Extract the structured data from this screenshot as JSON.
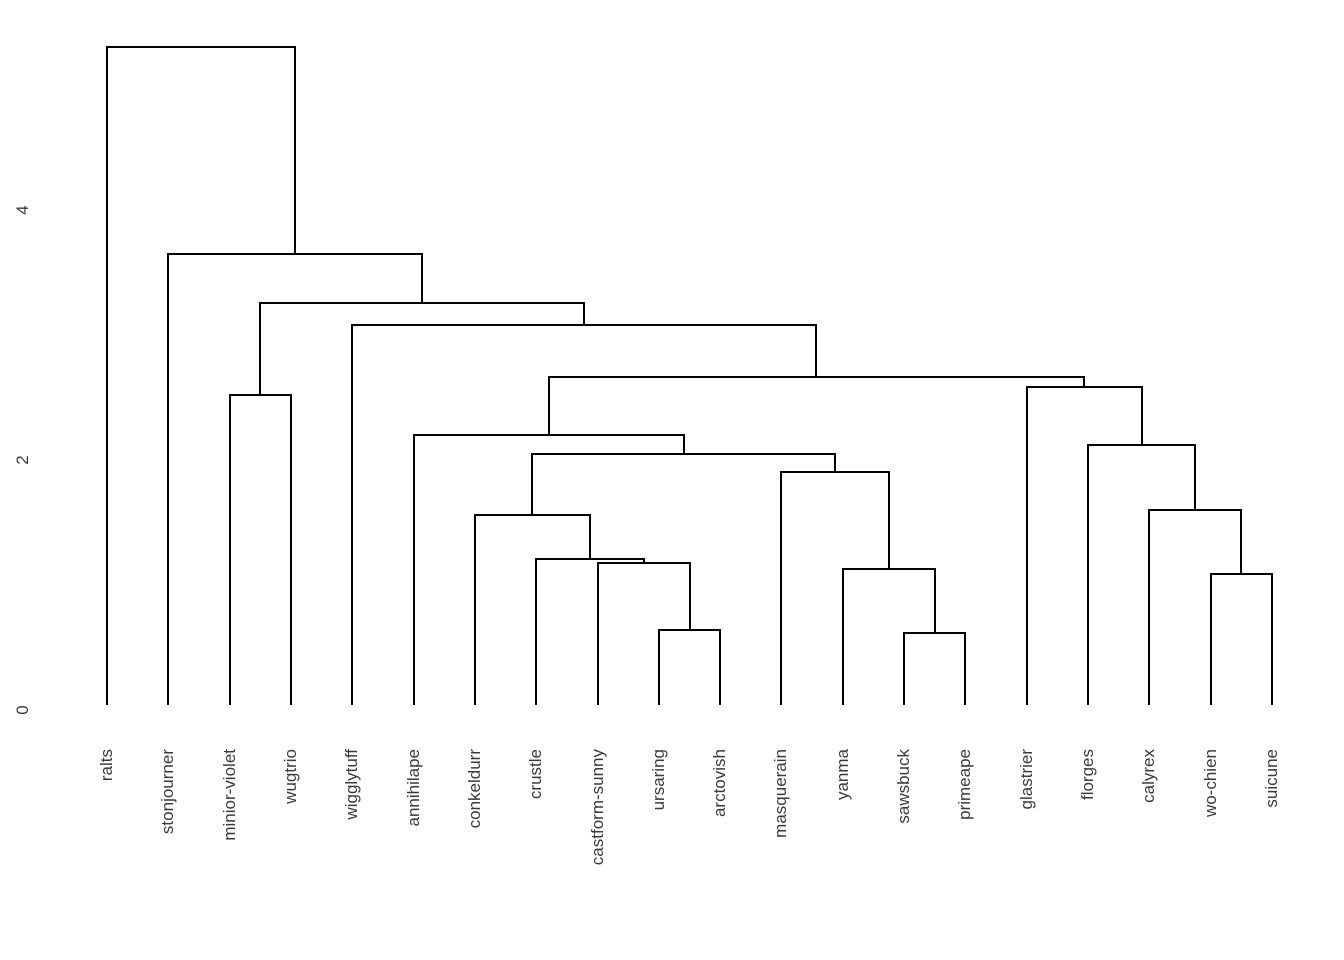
{
  "figure": {
    "background_color": "#ffffff",
    "line_color": "#000000",
    "text_color": "#3a3a3a"
  },
  "chart_data": {
    "type": "dendrogram",
    "orientation": "leaves-bottom",
    "title": "",
    "xlabel": "",
    "ylabel": "",
    "grid": false,
    "yaxis": {
      "side": "left",
      "ticks": [
        0,
        2,
        4
      ],
      "range": [
        0,
        5.3
      ],
      "labels_rotated": true
    },
    "leaves": [
      "ralts",
      "stonjourner",
      "minior-violet",
      "wugtrio",
      "wigglytuff",
      "annihilape",
      "conkeldurr",
      "crustle",
      "castform-sunny",
      "ursaring",
      "arctovish",
      "masquerain",
      "yanma",
      "sawsbuck",
      "primeape",
      "glastrier",
      "florges",
      "calyrex",
      "wo-chien",
      "suicune"
    ],
    "tree": {
      "height": 5.3,
      "children": [
        {
          "leaf": "ralts"
        },
        {
          "height": 3.64,
          "children": [
            {
              "leaf": "stonjourner"
            },
            {
              "height": 3.25,
              "children": [
                {
                  "height": 2.51,
                  "children": [
                    {
                      "leaf": "minior-violet"
                    },
                    {
                      "leaf": "wugtrio"
                    }
                  ]
                },
                {
                  "height": 3.07,
                  "children": [
                    {
                      "leaf": "wigglytuff"
                    },
                    {
                      "height": 2.66,
                      "children": [
                        {
                          "height": 2.19,
                          "children": [
                            {
                              "leaf": "annihilape"
                            },
                            {
                              "height": 2.04,
                              "children": [
                                {
                                  "height": 1.55,
                                  "children": [
                                    {
                                      "leaf": "conkeldurr"
                                    },
                                    {
                                      "height": 1.2,
                                      "children": [
                                        {
                                          "leaf": "crustle"
                                        },
                                        {
                                          "height": 1.17,
                                          "children": [
                                            {
                                              "leaf": "castform-sunny"
                                            },
                                            {
                                              "height": 0.63,
                                              "children": [
                                                {
                                                  "leaf": "ursaring"
                                                },
                                                {
                                                  "leaf": "arctovish"
                                                }
                                              ]
                                            }
                                          ]
                                        }
                                      ]
                                    }
                                  ]
                                },
                                {
                                  "height": 1.9,
                                  "children": [
                                    {
                                      "leaf": "masquerain"
                                    },
                                    {
                                      "height": 1.12,
                                      "children": [
                                        {
                                          "leaf": "yanma"
                                        },
                                        {
                                          "height": 0.61,
                                          "children": [
                                            {
                                              "leaf": "sawsbuck"
                                            },
                                            {
                                              "leaf": "primeape"
                                            }
                                          ]
                                        }
                                      ]
                                    }
                                  ]
                                }
                              ]
                            }
                          ]
                        },
                        {
                          "height": 2.58,
                          "children": [
                            {
                              "leaf": "glastrier"
                            },
                            {
                              "height": 2.11,
                              "children": [
                                {
                                  "leaf": "florges"
                                },
                                {
                                  "height": 1.59,
                                  "children": [
                                    {
                                      "leaf": "calyrex"
                                    },
                                    {
                                      "height": 1.08,
                                      "children": [
                                        {
                                          "leaf": "wo-chien"
                                        },
                                        {
                                          "leaf": "suicune"
                                        }
                                      ]
                                    }
                                  ]
                                }
                              ]
                            }
                          ]
                        }
                      ]
                    }
                  ]
                }
              ]
            }
          ]
        }
      ]
    }
  }
}
